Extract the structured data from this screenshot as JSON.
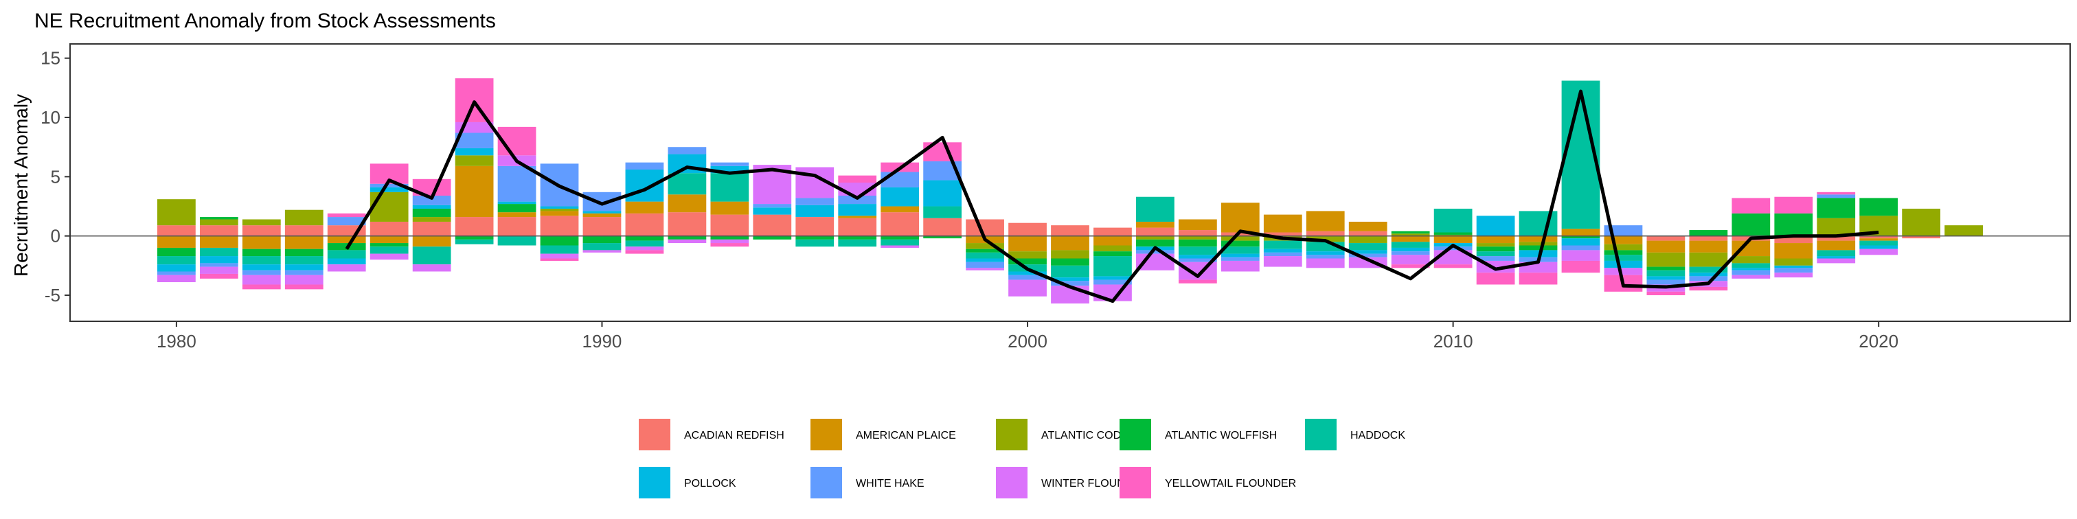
{
  "chart_data": {
    "type": "bar",
    "stacked": true,
    "title": "NE Recruitment Anomaly from Stock Assessments",
    "xlabel": "",
    "ylabel": "Recruitment Anomaly",
    "xlim": [
      1977.5,
      2024.5
    ],
    "ylim": [
      -7.2,
      16.2
    ],
    "x_ticks": [
      1980,
      1990,
      2000,
      2010,
      2020
    ],
    "y_ticks": [
      -5,
      0,
      5,
      10,
      15
    ],
    "grid": false,
    "legend_position": "bottom",
    "years": [
      1980,
      1981,
      1982,
      1983,
      1984,
      1985,
      1986,
      1987,
      1988,
      1989,
      1990,
      1991,
      1992,
      1993,
      1994,
      1995,
      1996,
      1997,
      1998,
      1999,
      2000,
      2001,
      2002,
      2003,
      2004,
      2005,
      2006,
      2007,
      2008,
      2009,
      2010,
      2011,
      2012,
      2013,
      2014,
      2015,
      2016,
      2017,
      2018,
      2019,
      2020,
      2021,
      2022
    ],
    "series": [
      {
        "name": "ACADIAN REDFISH",
        "color": "#F8766D",
        "values": [
          0.9,
          0.9,
          0.9,
          0.9,
          0.9,
          1.2,
          1.2,
          1.6,
          1.6,
          1.7,
          1.6,
          1.9,
          2.0,
          1.8,
          1.8,
          1.6,
          1.5,
          2.0,
          1.5,
          1.4,
          1.1,
          0.9,
          0.7,
          0.7,
          0.5,
          0.3,
          0.3,
          0.4,
          0.4,
          0,
          0,
          0,
          0,
          0,
          0,
          -0.4,
          -0.4,
          -0.4,
          -0.6,
          -0.4,
          -0.2,
          -0.2,
          0
        ]
      },
      {
        "name": "AMERICAN PLAICE",
        "color": "#D39200",
        "values": [
          -1.0,
          -1.0,
          -1.1,
          -1.1,
          -0.6,
          -0.6,
          -0.9,
          4.3,
          0.4,
          0.4,
          0.3,
          1.0,
          1.5,
          1.1,
          0,
          0,
          0.2,
          0.5,
          0,
          -0.6,
          -1.3,
          -1.2,
          -0.8,
          0.5,
          0.9,
          2.5,
          1.5,
          1.7,
          0.8,
          -0.5,
          -0.6,
          -0.6,
          -0.5,
          0.6,
          -0.7,
          -1.0,
          -1.0,
          -1.3,
          -1.3,
          -0.8,
          -0.2,
          0,
          0
        ]
      },
      {
        "name": "ATLANTIC COD",
        "color": "#93AA00",
        "values": [
          2.2,
          0.5,
          0.5,
          1.3,
          0,
          2.5,
          0.4,
          0.9,
          0,
          0.2,
          0,
          0,
          0,
          0,
          0,
          0,
          0,
          0,
          0,
          -0.5,
          -0.6,
          -0.7,
          -0.5,
          -0.3,
          -0.3,
          -0.4,
          -0.4,
          -0.5,
          -0.6,
          0.2,
          0.1,
          -0.3,
          -0.3,
          0,
          -0.5,
          -1.2,
          -1.2,
          -0.6,
          -0.6,
          1.5,
          1.7,
          2.3,
          0.9
        ]
      },
      {
        "name": "ATLANTIC WOLFFISH",
        "color": "#00BA38",
        "values": [
          -0.7,
          0.2,
          -0.6,
          -0.6,
          -0.6,
          -0.3,
          0.7,
          -0.3,
          0.7,
          -0.8,
          -0.6,
          -0.4,
          -0.3,
          -0.3,
          -0.3,
          -0.3,
          -0.3,
          -0.3,
          -0.2,
          -0.3,
          -0.5,
          -0.6,
          -0.4,
          -0.6,
          -0.6,
          -0.5,
          0,
          0,
          0,
          0.2,
          0.2,
          -0.4,
          -0.4,
          -0.2,
          -0.4,
          -0.3,
          0.5,
          1.9,
          1.9,
          1.7,
          1.5,
          0,
          0
        ]
      },
      {
        "name": "HADDOCK",
        "color": "#00C19F",
        "values": [
          -0.7,
          -0.7,
          -0.7,
          -0.7,
          -0.7,
          -0.6,
          -1.5,
          -0.4,
          -0.8,
          -0.7,
          -0.6,
          -0.5,
          1.8,
          2.4,
          0,
          -0.6,
          -0.6,
          -0.5,
          1.0,
          -0.5,
          -0.6,
          -1.0,
          -1.7,
          2.1,
          -0.7,
          -0.6,
          -0.7,
          -0.8,
          -0.6,
          -0.5,
          2.0,
          -0.4,
          2.1,
          12.5,
          -0.5,
          -0.5,
          -0.5,
          -0.4,
          0,
          -0.5,
          -0.4,
          0,
          0
        ]
      },
      {
        "name": "POLLOCK",
        "color": "#00B9E3",
        "values": [
          -0.6,
          -0.6,
          -0.5,
          -0.5,
          -0.5,
          0.4,
          0.3,
          0.6,
          0.2,
          0.2,
          0.2,
          2.7,
          1.6,
          0.6,
          0.6,
          1.0,
          1.0,
          1.6,
          2.2,
          -0.3,
          -0.3,
          -0.3,
          -0.3,
          -0.3,
          -0.3,
          -0.3,
          -0.3,
          -0.3,
          -0.3,
          -0.3,
          -0.3,
          1.7,
          -0.6,
          -0.6,
          -0.6,
          -0.3,
          -0.3,
          -0.2,
          -0.2,
          -0.2,
          -0.3,
          0,
          0
        ]
      },
      {
        "name": "WHITE HAKE",
        "color": "#619CFF",
        "values": [
          -0.3,
          -0.3,
          -0.4,
          -0.4,
          0.7,
          0.3,
          0.8,
          1.3,
          3.0,
          3.6,
          1.6,
          0.6,
          0.6,
          0.3,
          0.3,
          0.6,
          0.7,
          1.3,
          1.6,
          -0.5,
          -0.4,
          -0.4,
          -0.4,
          -0.3,
          -0.3,
          -0.3,
          -0.3,
          -0.3,
          -0.3,
          -0.3,
          -0.3,
          -0.4,
          -0.4,
          -0.4,
          0.9,
          -0.4,
          -0.4,
          -0.4,
          -0.4,
          0.3,
          0,
          0,
          0
        ]
      },
      {
        "name": "WINTER FLOUNDER",
        "color": "#DB72FB",
        "values": [
          -0.6,
          -0.6,
          -0.8,
          -0.8,
          -0.6,
          -0.5,
          -0.6,
          0.9,
          0.9,
          -0.4,
          -0.2,
          -0.3,
          -0.3,
          -0.3,
          3.3,
          2.6,
          1.1,
          -0.2,
          0,
          -0.2,
          -1.4,
          -1.5,
          -1.4,
          -1.4,
          -1.5,
          -0.9,
          -0.9,
          -0.8,
          -0.9,
          -0.8,
          -1.2,
          -1.0,
          -0.9,
          -0.9,
          -0.6,
          -0.6,
          -0.5,
          -0.3,
          -0.4,
          -0.4,
          -0.5,
          0,
          0
        ]
      },
      {
        "name": "YELLOWTAIL FLOUNDER",
        "color": "#FF61C3",
        "values": [
          0,
          -0.4,
          -0.4,
          -0.4,
          0.3,
          1.7,
          1.4,
          3.7,
          2.4,
          -0.2,
          0,
          -0.3,
          0,
          -0.3,
          0,
          0,
          0.6,
          0.8,
          1.6,
          0,
          0,
          0,
          0,
          0,
          -0.3,
          0,
          0,
          0,
          0,
          -0.3,
          -0.3,
          -1.0,
          -1.0,
          -1.0,
          -1.4,
          -0.3,
          -0.3,
          1.3,
          1.4,
          0.2,
          0,
          0,
          0
        ]
      }
    ],
    "line": {
      "name": "",
      "color": "#000000",
      "x": [
        1984,
        1985,
        1986,
        1987,
        1988,
        1989,
        1990,
        1991,
        1992,
        1993,
        1994,
        1995,
        1996,
        1997,
        1998,
        1999,
        2000,
        2001,
        2002,
        2003,
        2004,
        2005,
        2006,
        2007,
        2008,
        2009,
        2010,
        2011,
        2012,
        2013,
        2014,
        2015,
        2016,
        2017,
        2018,
        2019,
        2020
      ],
      "y": [
        -1.1,
        4.7,
        3.2,
        11.3,
        6.3,
        4.2,
        2.7,
        3.9,
        5.8,
        5.3,
        5.6,
        5.1,
        3.2,
        5.7,
        8.3,
        -0.3,
        -2.8,
        -4.3,
        -5.5,
        -1.0,
        -3.4,
        0.4,
        -0.2,
        -0.4,
        -2.0,
        -3.6,
        -0.8,
        -2.8,
        -2.2,
        12.2,
        -4.2,
        -4.3,
        -4.0,
        -0.2,
        0,
        0,
        0.3
      ]
    },
    "zero_line": 0
  }
}
